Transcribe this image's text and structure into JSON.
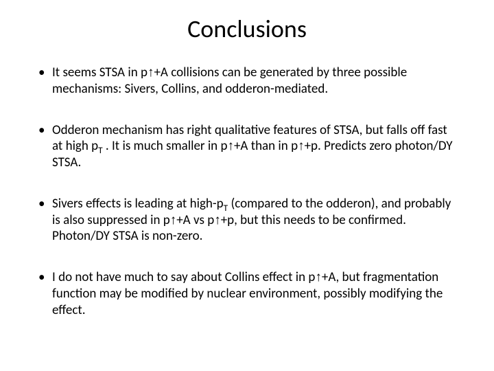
{
  "title": "Conclusions",
  "bullets": [
    {
      "segments": [
        {
          "t": "It seems STSA in p"
        },
        {
          "t": "↑",
          "cls": "arrow"
        },
        {
          "t": "+A collisions can be generated by three possible mechanisms: Sivers, Collins, and odderon-mediated."
        }
      ]
    },
    {
      "segments": [
        {
          "t": "Odderon mechanism has right qualitative features of STSA, but falls off fast at high p"
        },
        {
          "t": "T",
          "sub": true
        },
        {
          "t": " . It is much smaller in p"
        },
        {
          "t": "↑",
          "cls": "arrow"
        },
        {
          "t": "+A than in p"
        },
        {
          "t": "↑",
          "cls": "arrow"
        },
        {
          "t": "+p. Predicts zero photon/DY STSA."
        }
      ]
    },
    {
      "segments": [
        {
          "t": "Sivers effects is leading at high-p"
        },
        {
          "t": "T",
          "sub": true
        },
        {
          "t": " (compared to the odderon), and probably is also suppressed in p"
        },
        {
          "t": "↑",
          "cls": "arrow"
        },
        {
          "t": "+A vs p"
        },
        {
          "t": "↑",
          "cls": "arrow"
        },
        {
          "t": "+p, but this needs to be confirmed. Photon/DY STSA is non-zero."
        }
      ]
    },
    {
      "segments": [
        {
          "t": "I do not have much to say about Collins effect in p"
        },
        {
          "t": "↑",
          "cls": "arrow"
        },
        {
          "t": "+A, but fragmentation function may be modified by nuclear environment, possibly modifying the effect."
        }
      ]
    }
  ]
}
